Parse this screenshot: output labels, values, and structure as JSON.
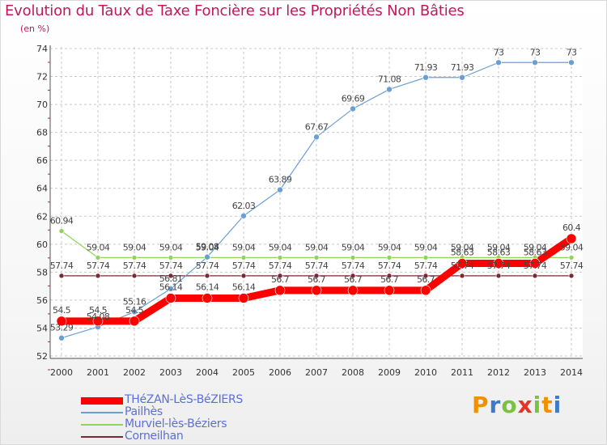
{
  "header": {
    "title": "Evolution du Taux de Taxe Foncière sur les Propriétés Non Bâties",
    "unit": "(en %)"
  },
  "chart_data": {
    "type": "line",
    "x": [
      2000,
      2001,
      2002,
      2003,
      2004,
      2005,
      2006,
      2007,
      2008,
      2009,
      2010,
      2011,
      2012,
      2013,
      2014
    ],
    "ylim": [
      52,
      74
    ],
    "yticks": [
      52,
      54,
      56,
      58,
      60,
      62,
      64,
      66,
      68,
      70,
      72,
      74
    ],
    "grid": true,
    "series": [
      {
        "name": "Murviel-lès-Béziers",
        "color": "#8fd45a",
        "values": [
          60.94,
          59.04,
          59.04,
          59.04,
          59.04,
          59.04,
          59.04,
          59.04,
          59.04,
          59.04,
          59.04,
          59.04,
          59.04,
          59.04,
          59.04
        ],
        "labels": [
          "60.94",
          "59.04",
          "59.04",
          "59.04",
          "59.04",
          "59.04",
          "59.04",
          "59.04",
          "59.04",
          "59.04",
          "59.04",
          "59.04",
          "59.04",
          "59.04",
          "59.04"
        ]
      },
      {
        "name": "Corneilhan",
        "color": "#7a2a32",
        "values": [
          57.74,
          57.74,
          57.74,
          57.74,
          57.74,
          57.74,
          57.74,
          57.74,
          57.74,
          57.74,
          57.74,
          57.74,
          57.74,
          57.74,
          57.74
        ],
        "labels": [
          "57.74",
          "57.74",
          "57.74",
          "57.74",
          "57.74",
          "57.74",
          "57.74",
          "57.74",
          "57.74",
          "57.74",
          "57.74",
          "57.74",
          "57.74",
          "57.74",
          "57.74"
        ]
      },
      {
        "name": "Pailhès",
        "color": "#6b9fd4",
        "values": [
          53.29,
          54.08,
          55.16,
          56.81,
          59.08,
          62.03,
          63.89,
          67.67,
          69.69,
          71.08,
          71.93,
          71.93,
          73,
          73,
          73
        ],
        "labels": [
          "53.29",
          "54.08",
          "55.16",
          "56.81",
          "59.08",
          "62.03",
          "63.89",
          "67.67",
          "69.69",
          "71.08",
          "71.93",
          "71.93",
          "73",
          "73",
          "73"
        ]
      },
      {
        "name": "THéZAN-LèS-BéZIERS",
        "color": "#ff0000",
        "values": [
          54.5,
          54.5,
          54.5,
          56.14,
          56.14,
          56.14,
          56.7,
          56.7,
          56.7,
          56.7,
          56.7,
          58.63,
          58.63,
          58.63,
          60.4
        ],
        "labels": [
          "54.5",
          "54.5",
          "54.5",
          "56.14",
          "56.14",
          "56.14",
          "56.7",
          "56.7",
          "56.7",
          "56.7",
          "56.7",
          "58.63",
          "58.63",
          "58.63",
          "60.4"
        ]
      }
    ]
  },
  "legend": [
    {
      "label": "THéZAN-LèS-BéZIERS",
      "color": "#ff0000"
    },
    {
      "label": "Pailhès",
      "color": "#6b9fd4"
    },
    {
      "label": "Murviel-lès-Béziers",
      "color": "#8fd45a"
    },
    {
      "label": "Corneilhan",
      "color": "#7a2a32"
    }
  ],
  "logo": {
    "letters": [
      "P",
      "r",
      "o",
      "x",
      "i",
      "t",
      "i"
    ],
    "colors": [
      "#f29100",
      "#3d7ac9",
      "#7cc242",
      "#e6332a",
      "#7cc242",
      "#f29100",
      "#3d7ac9"
    ]
  }
}
